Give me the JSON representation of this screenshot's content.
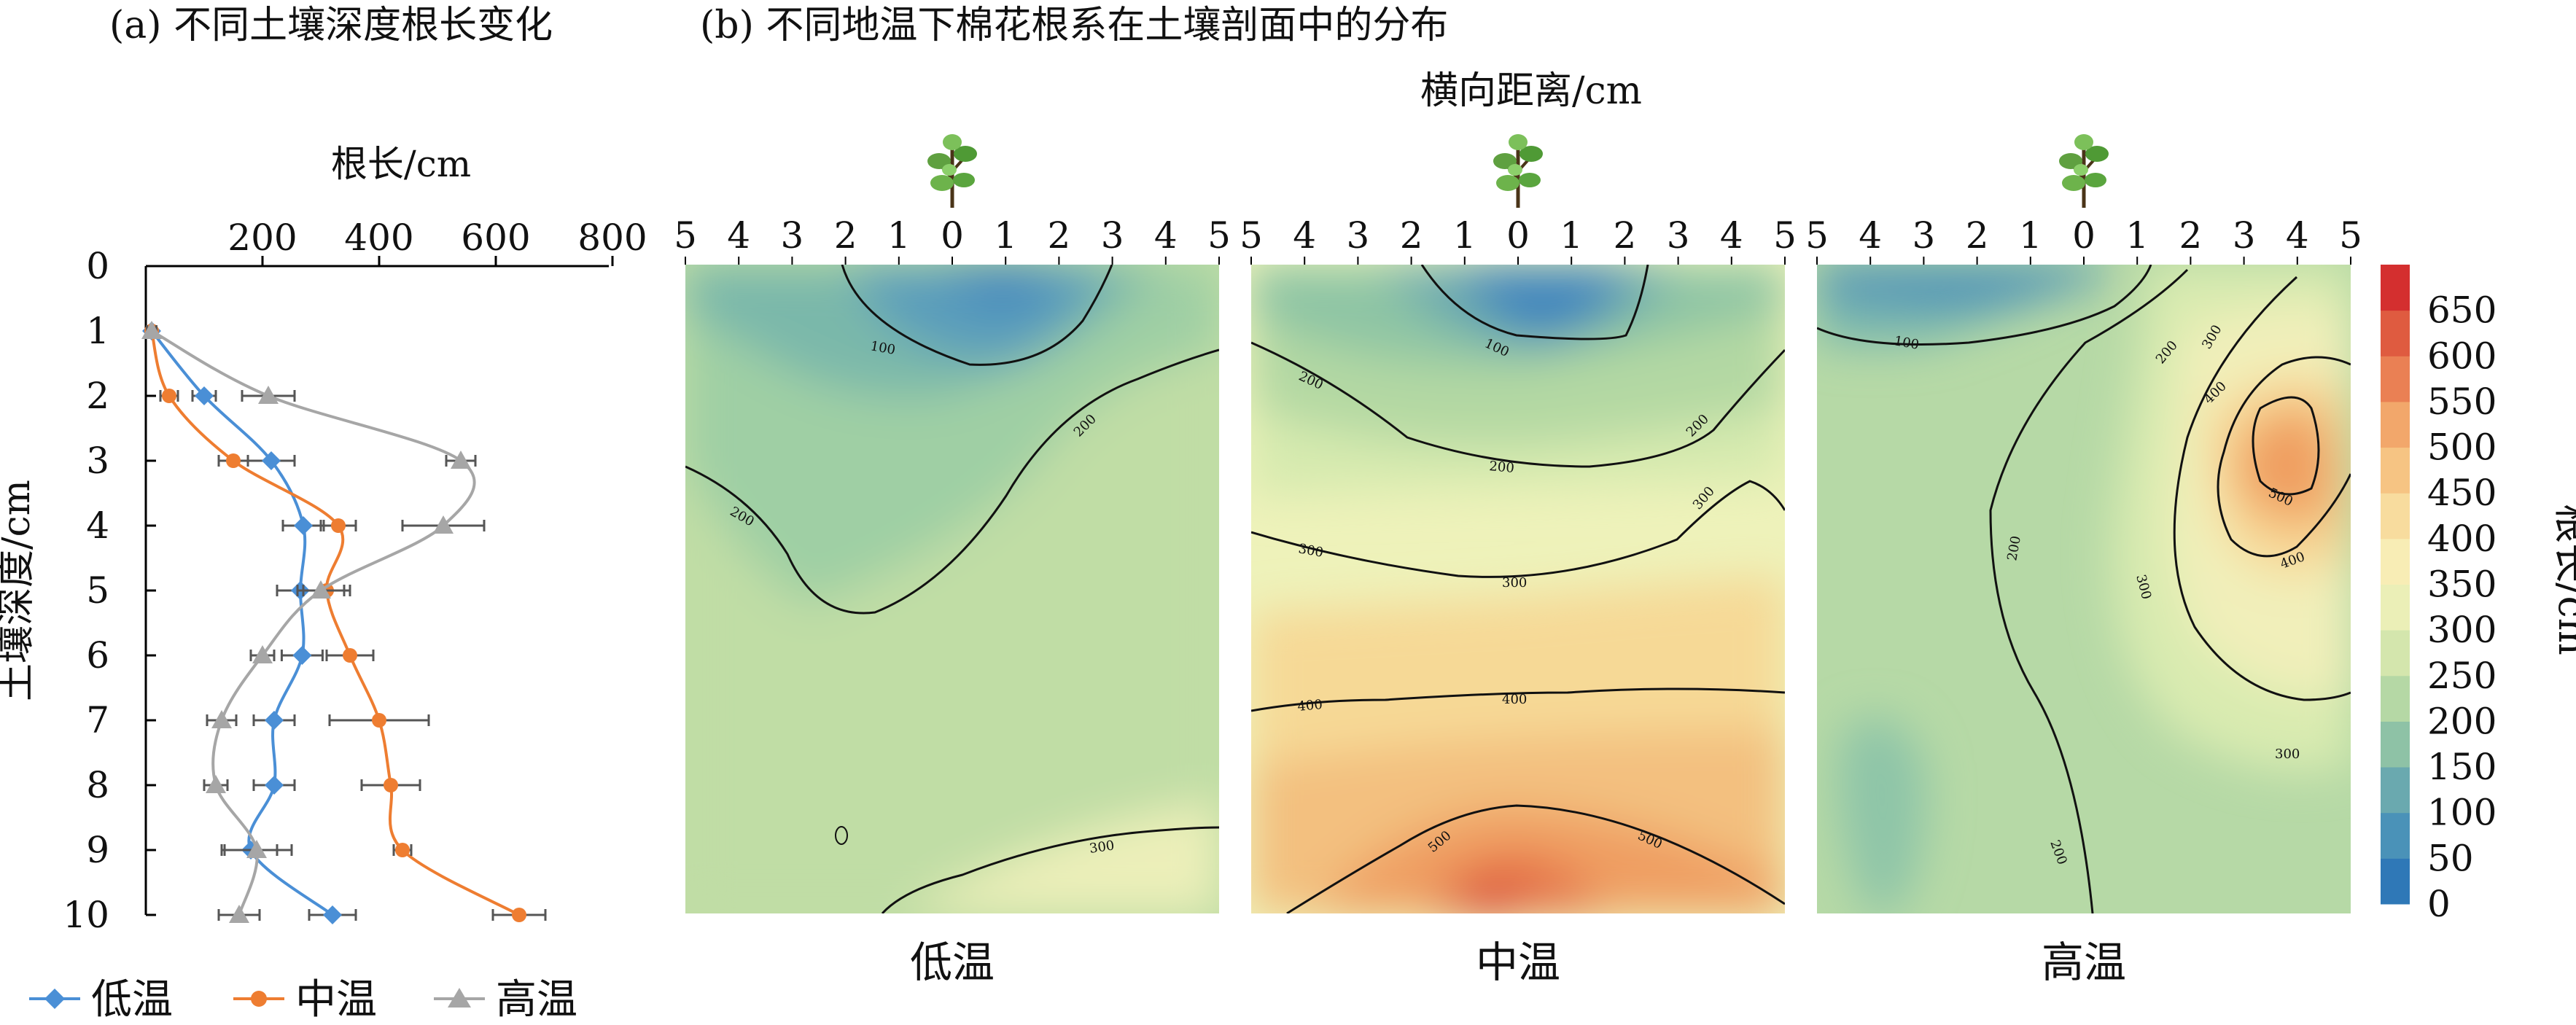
{
  "panel_a": {
    "title": "(a) 不同土壤深度根长变化",
    "x_axis_label": "根长/cm",
    "y_axis_label": "土壤深度/cm"
  },
  "panel_b": {
    "title": "(b) 不同地温下棉花根系在土壤剖面中的分布",
    "x_axis_label": "横向距离/cm",
    "subplot_labels": [
      "低温",
      "中温",
      "高温"
    ],
    "colorbar_label": "根长/cm"
  },
  "legend": [
    "低温",
    "中温",
    "高温"
  ],
  "colors": {
    "low": "#4a8fd6",
    "mid": "#ee7d31",
    "high": "#a6a6a6",
    "error": "#555555"
  },
  "icons": [
    "cotton-plant-icon",
    "cotton-plant-icon",
    "cotton-plant-icon"
  ],
  "chart_data": [
    {
      "type": "line",
      "title": "(a) 不同土壤深度根长变化",
      "xlabel": "根长/cm",
      "ylabel": "土壤深度/cm",
      "xlim": [
        0,
        800
      ],
      "ylim": [
        10,
        0
      ],
      "x_ticks": [
        200,
        400,
        600,
        800
      ],
      "y_ticks": [
        0,
        1,
        2,
        3,
        4,
        5,
        6,
        7,
        8,
        9,
        10
      ],
      "y_values": [
        1,
        2,
        3,
        4,
        5,
        6,
        7,
        8,
        9,
        10
      ],
      "legend_position": "bottom",
      "series": [
        {
          "name": "低温",
          "marker": "diamond",
          "color": "#4a8fd6",
          "values": [
            10,
            100,
            215,
            270,
            265,
            268,
            220,
            220,
            180,
            320
          ],
          "errors": [
            8,
            20,
            40,
            35,
            40,
            35,
            35,
            35,
            45,
            40
          ]
        },
        {
          "name": "中温",
          "marker": "circle",
          "color": "#ee7d31",
          "values": [
            10,
            40,
            150,
            330,
            310,
            350,
            400,
            420,
            440,
            640
          ],
          "errors": [
            5,
            15,
            25,
            30,
            40,
            40,
            85,
            50,
            15,
            45
          ]
        },
        {
          "name": "高温",
          "marker": "triangle",
          "color": "#a6a6a6",
          "values": [
            10,
            210,
            540,
            510,
            300,
            200,
            130,
            120,
            190,
            160
          ],
          "errors": [
            8,
            45,
            25,
            70,
            40,
            20,
            25,
            20,
            60,
            35
          ]
        }
      ]
    },
    {
      "type": "heatmap",
      "title": "低温",
      "xlabel": "横向距离/cm",
      "ylabel": "土壤深度/cm",
      "x": [
        -5,
        5
      ],
      "y": [
        0,
        10
      ],
      "x_ticks": [
        5,
        4,
        3,
        2,
        1,
        0,
        1,
        2,
        3,
        4,
        5
      ],
      "contour_labels": [
        "100",
        "200",
        "200",
        "300"
      ],
      "value_range": [
        70,
        330
      ]
    },
    {
      "type": "heatmap",
      "title": "中温",
      "xlabel": "横向距离/cm",
      "ylabel": "土壤深度/cm",
      "x": [
        -5,
        5
      ],
      "y": [
        0,
        10
      ],
      "x_ticks": [
        5,
        4,
        3,
        2,
        1,
        0,
        1,
        2,
        3,
        4,
        5
      ],
      "contour_labels": [
        "100",
        "200",
        "200",
        "200",
        "300",
        "300",
        "300",
        "400",
        "400",
        "500",
        "500"
      ],
      "value_range": [
        40,
        580
      ]
    },
    {
      "type": "heatmap",
      "title": "高温",
      "xlabel": "横向距离/cm",
      "ylabel": "土壤深度/cm",
      "x": [
        -5,
        5
      ],
      "y": [
        0,
        10
      ],
      "x_ticks": [
        5,
        4,
        3,
        2,
        1,
        0,
        1,
        2,
        3,
        4,
        5
      ],
      "contour_labels": [
        "100",
        "200",
        "300",
        "400",
        "500",
        "400",
        "300",
        "300",
        "200",
        "200"
      ],
      "value_range": [
        60,
        520
      ]
    },
    {
      "type": "colorbar",
      "label": "根长/cm",
      "ticks": [
        0,
        50,
        100,
        150,
        200,
        250,
        300,
        350,
        400,
        450,
        500,
        550,
        600,
        650
      ],
      "colors": [
        "#2f78b7",
        "#4a92b8",
        "#6aa9af",
        "#8ec2a6",
        "#b5d8a5",
        "#d4e6ad",
        "#ebefb7",
        "#f8edb5",
        "#f8dc9e",
        "#f6c483",
        "#f2a76b",
        "#ea8054",
        "#df5b40",
        "#d42f2f"
      ]
    }
  ]
}
